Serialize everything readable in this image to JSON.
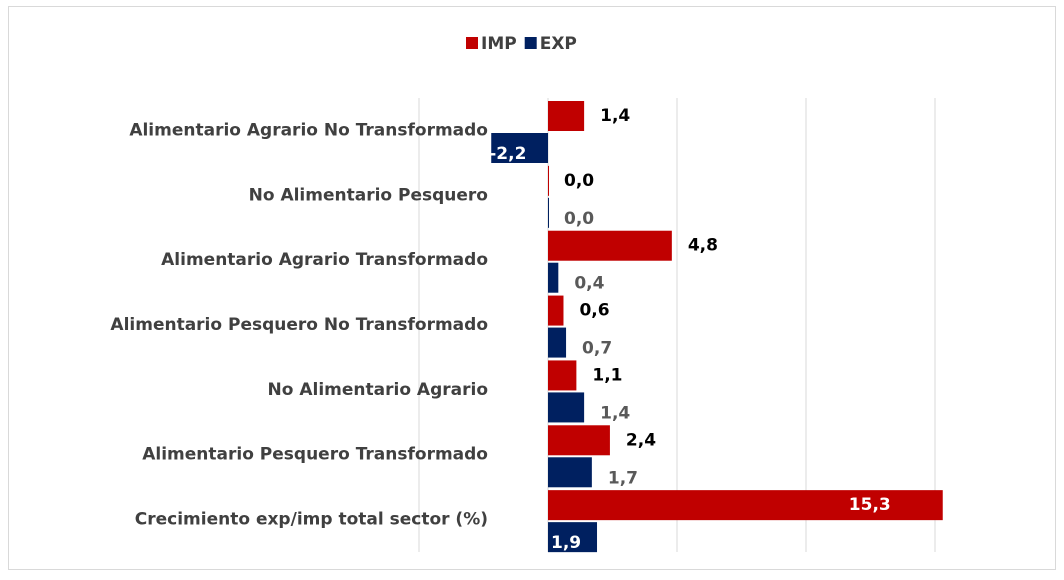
{
  "chart_data": {
    "type": "hbar",
    "categories": [
      "Alimentario Agrario No Transformado",
      "No Alimentario Pesquero",
      "Alimentario Agrario Transformado",
      "Alimentario Pesquero No Transformado",
      "No Alimentario Agrario",
      "Alimentario Pesquero Transformado",
      "Crecimiento exp/imp total sector (%)"
    ],
    "series": [
      {
        "name": "IMP",
        "color": "#c00000",
        "values": [
          1.4,
          0.0,
          4.8,
          0.6,
          1.1,
          2.4,
          15.3
        ],
        "value_labels": [
          "1,4",
          "0,0",
          "4,8",
          "0,6",
          "1,1",
          "2,4",
          "15,3"
        ]
      },
      {
        "name": "EXP",
        "color": "#002060",
        "values": [
          -2.2,
          0.0,
          0.4,
          0.7,
          1.4,
          1.7,
          1.9
        ],
        "value_labels": [
          "-2,2",
          "0,0",
          "0,4",
          "0,7",
          "1,4",
          "1,7",
          "1,9"
        ]
      }
    ],
    "xlim": [
      -5,
      16
    ],
    "grid": true,
    "legend": "top"
  }
}
